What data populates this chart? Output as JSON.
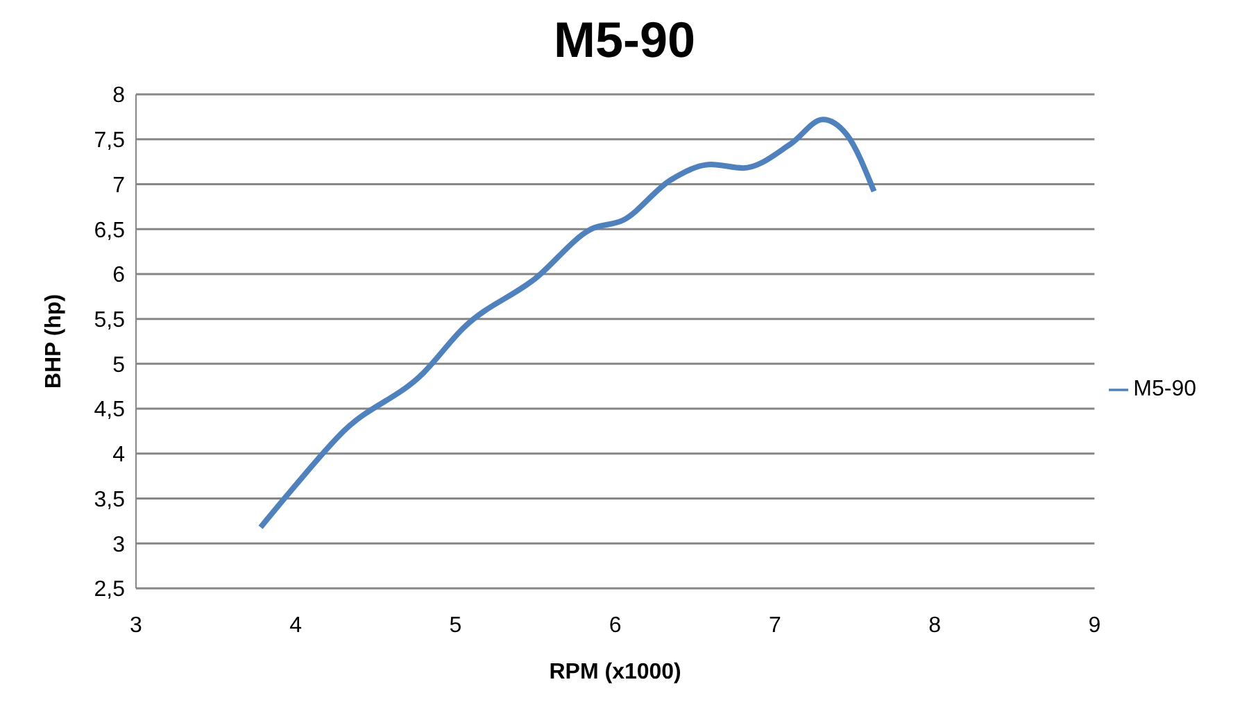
{
  "chart_data": {
    "type": "line",
    "title": "M5-90",
    "xlabel": "RPM (x1000)",
    "ylabel": "BHP (hp)",
    "series": [
      {
        "name": "M5-90",
        "color": "#4f81bd",
        "x": [
          3.78,
          4.0,
          4.3,
          4.8,
          5.05,
          5.5,
          5.85,
          6.05,
          6.35,
          6.6,
          6.8,
          7.1,
          7.3,
          7.45,
          7.62
        ],
        "values": [
          3.18,
          3.65,
          4.25,
          4.9,
          5.4,
          5.95,
          6.5,
          6.6,
          7.05,
          7.22,
          7.18,
          7.45,
          7.72,
          7.55,
          6.92
        ]
      }
    ],
    "xlim": [
      3,
      9
    ],
    "xticks": [
      3,
      4,
      5,
      6,
      7,
      8,
      9
    ],
    "ylim": [
      2.5,
      8
    ],
    "yticks": [
      {
        "value": 2.5,
        "label": "2,5"
      },
      3,
      {
        "value": 3.5,
        "label": "3,5"
      },
      4,
      {
        "value": 4.5,
        "label": "4,5"
      },
      5,
      {
        "value": 5.5,
        "label": "5,5"
      },
      6,
      {
        "value": 6.5,
        "label": "6,5"
      },
      7,
      {
        "value": 7.5,
        "label": "7,5"
      },
      8
    ],
    "grid": "y",
    "legend": "right",
    "marker": "none",
    "line_style": "solid"
  }
}
